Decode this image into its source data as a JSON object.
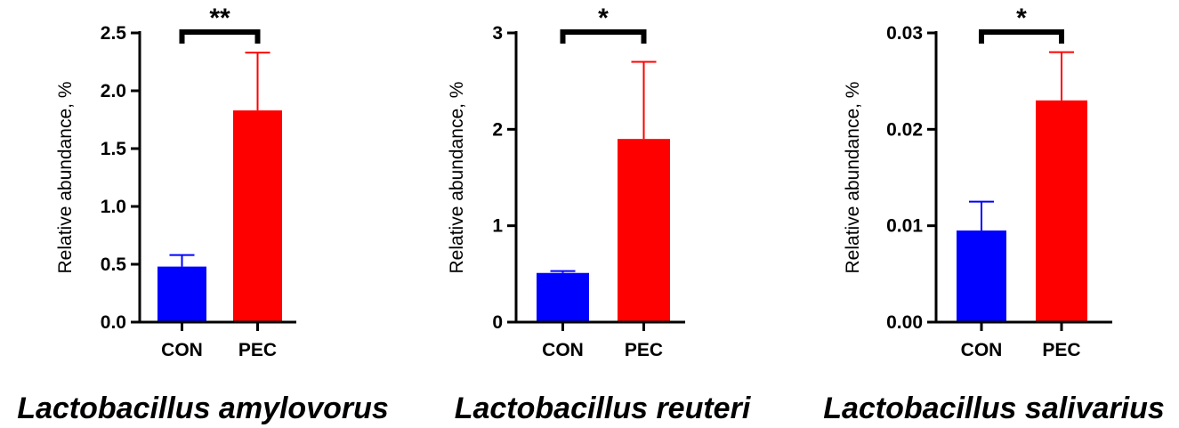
{
  "chart_data": [
    {
      "type": "bar",
      "title": "Lactobacillus amylovorus",
      "xlabel": "",
      "ylabel": "Relative abundance, %",
      "categories": [
        "CON",
        "PEC"
      ],
      "values": [
        0.48,
        1.83
      ],
      "errors": [
        0.1,
        0.5
      ],
      "ylim": [
        0,
        2.5
      ],
      "yticks": [
        0,
        0.5,
        1.0,
        1.5,
        2.0,
        2.5
      ],
      "ytick_labels": [
        "0.0",
        "0.5",
        "1.0",
        "1.5",
        "2.0",
        "2.5"
      ],
      "significance": "**",
      "colors": [
        "#0000ff",
        "#ff0000"
      ],
      "grid": false
    },
    {
      "type": "bar",
      "title": "Lactobacillus reuteri",
      "xlabel": "",
      "ylabel": "Relative abundance, %",
      "categories": [
        "CON",
        "PEC"
      ],
      "values": [
        0.51,
        1.9
      ],
      "errors": [
        0.02,
        0.8
      ],
      "ylim": [
        0,
        3
      ],
      "yticks": [
        0,
        1,
        2,
        3
      ],
      "ytick_labels": [
        "0",
        "1",
        "2",
        "3"
      ],
      "significance": "*",
      "colors": [
        "#0000ff",
        "#ff0000"
      ],
      "grid": false
    },
    {
      "type": "bar",
      "title": "Lactobacillus salivarius",
      "xlabel": "",
      "ylabel": "Relative abundance, %",
      "categories": [
        "CON",
        "PEC"
      ],
      "values": [
        0.0095,
        0.023
      ],
      "errors": [
        0.003,
        0.005
      ],
      "ylim": [
        0,
        0.03
      ],
      "yticks": [
        0,
        0.01,
        0.02,
        0.03
      ],
      "ytick_labels": [
        "0.00",
        "0.01",
        "0.02",
        "0.03"
      ],
      "significance": "*",
      "colors": [
        "#0000ff",
        "#ff0000"
      ],
      "grid": false
    }
  ]
}
